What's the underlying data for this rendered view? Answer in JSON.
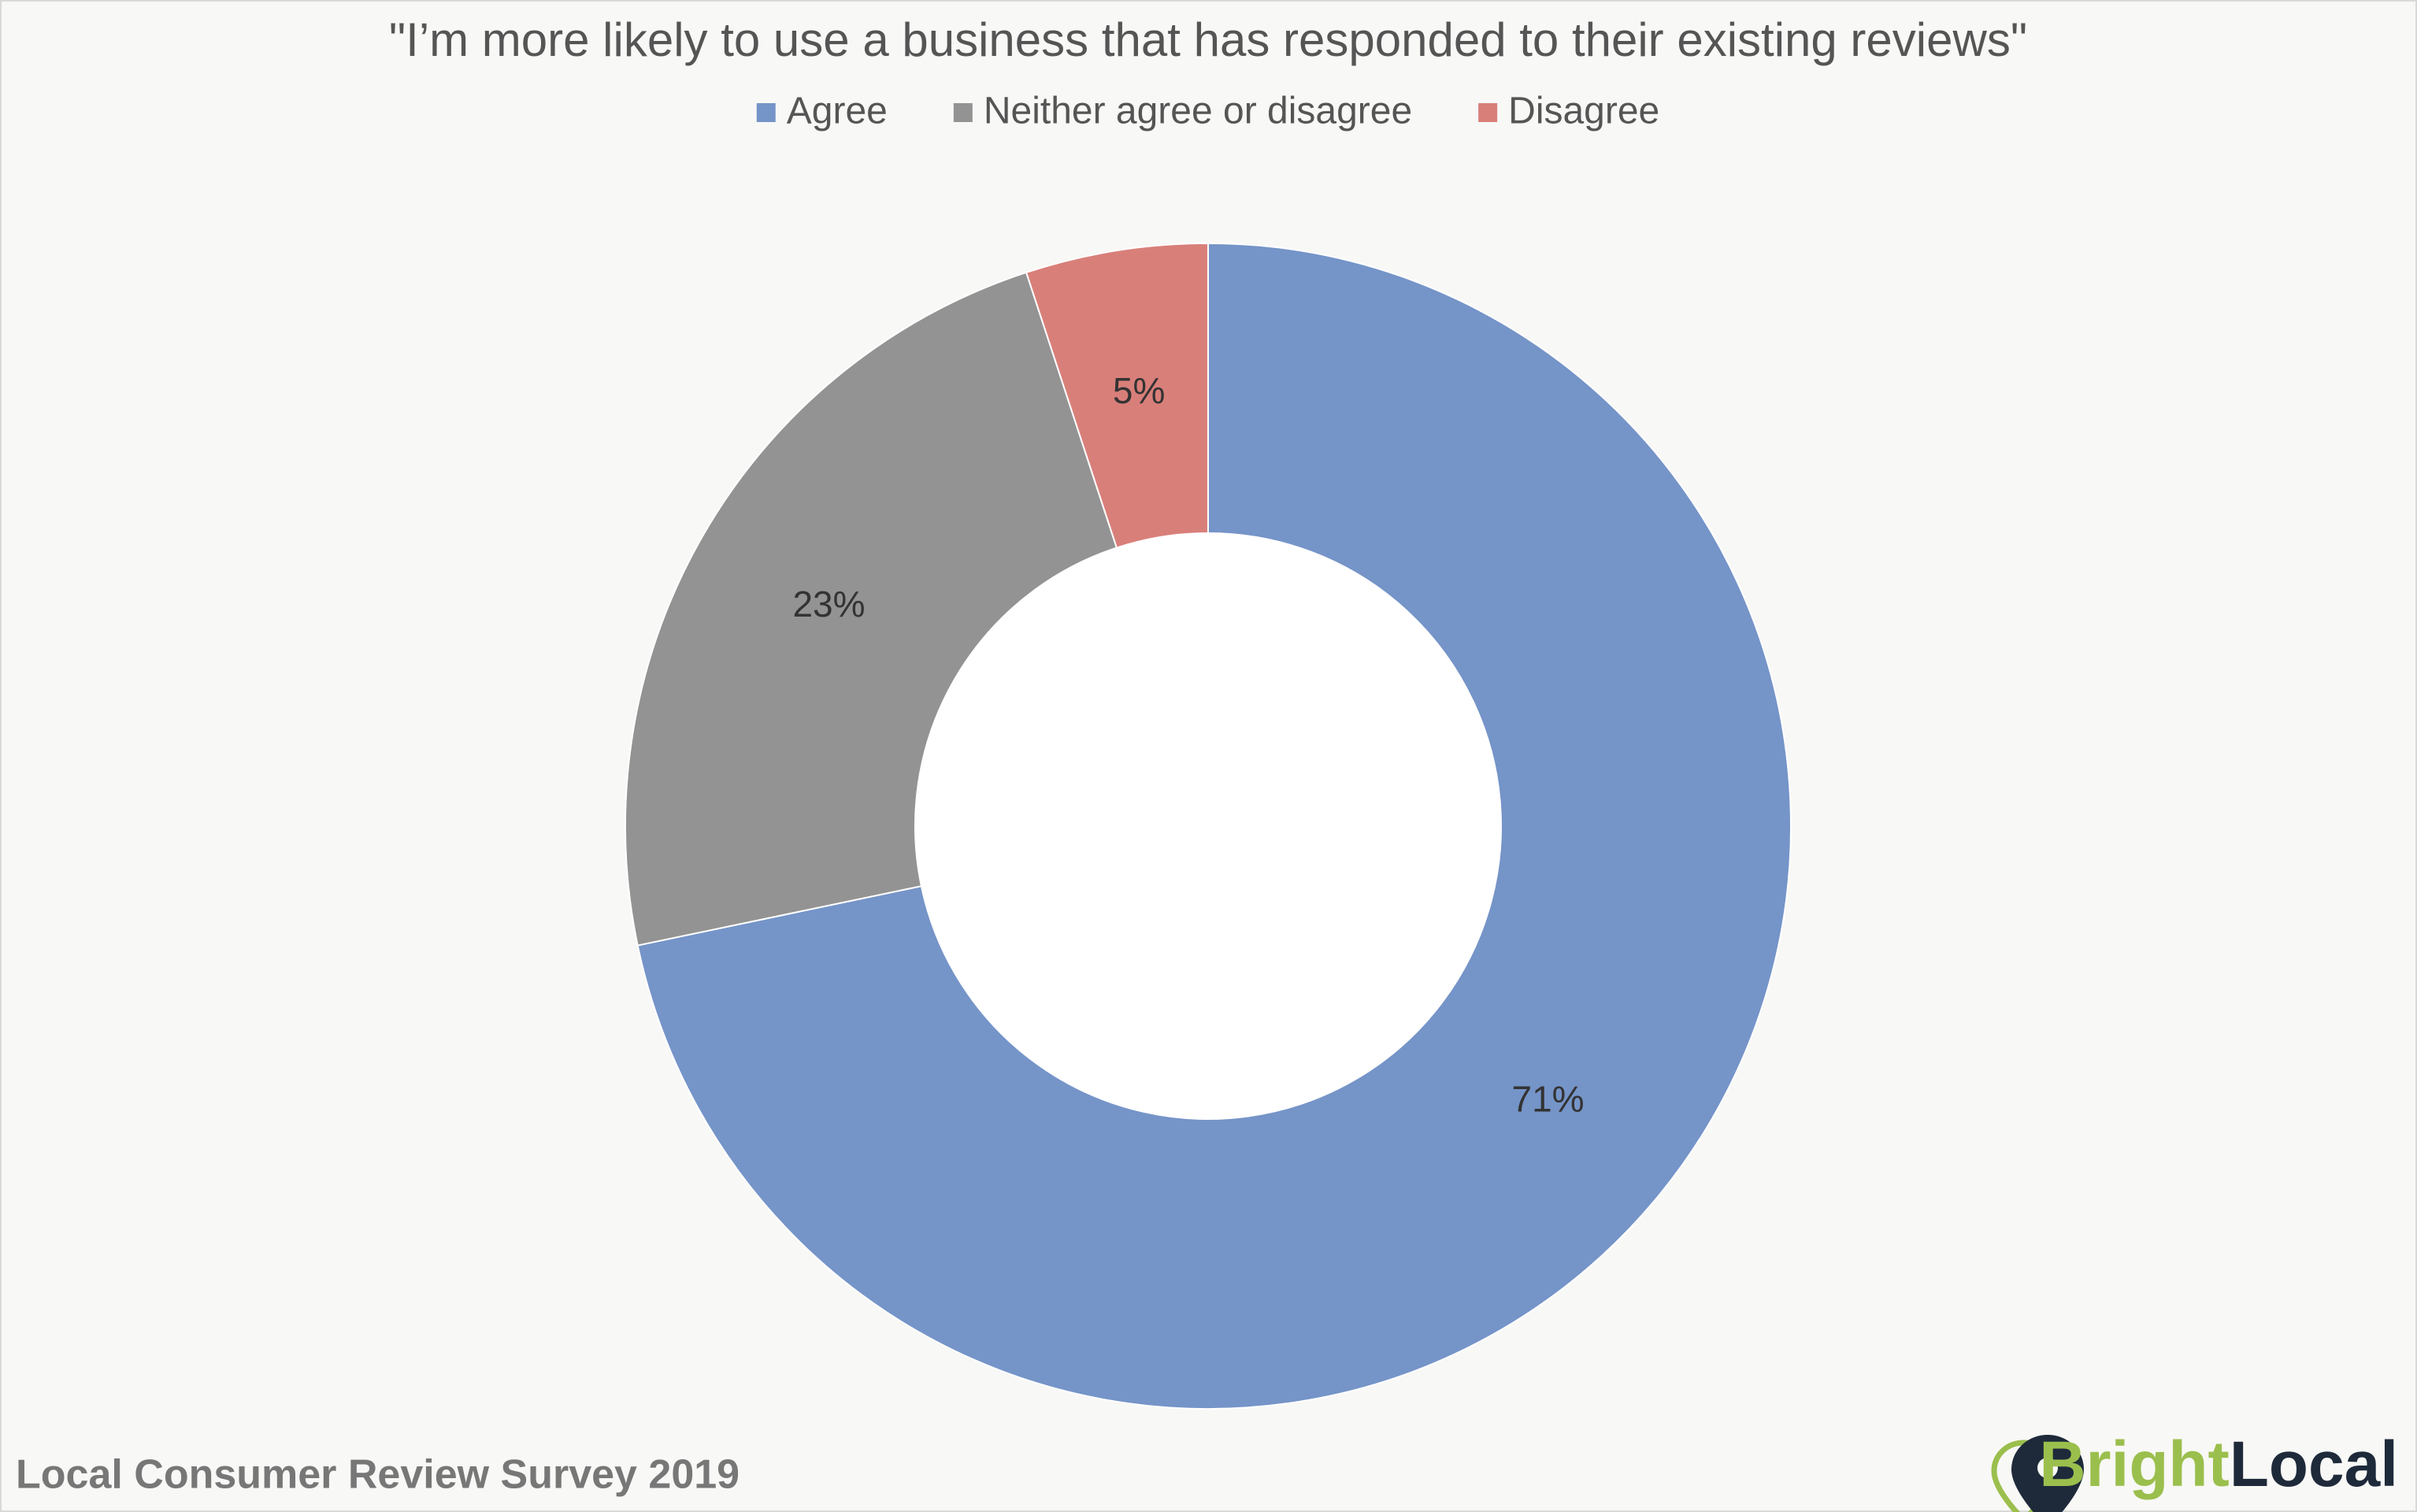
{
  "chart_data": {
    "type": "donut",
    "title": "\"I’m more likely to use a business that has responded to their existing reviews\"",
    "categories": [
      "Agree",
      "Neither agree or disagree",
      "Disagree"
    ],
    "values": [
      71,
      23,
      5
    ],
    "value_labels": [
      "71%",
      "23%",
      "5%"
    ],
    "colors": [
      "#7594c8",
      "#939393",
      "#d97f7a"
    ],
    "legend": "top",
    "source": "Local Consumer Review Survey 2019",
    "brand": [
      "Bright",
      "Local"
    ]
  }
}
